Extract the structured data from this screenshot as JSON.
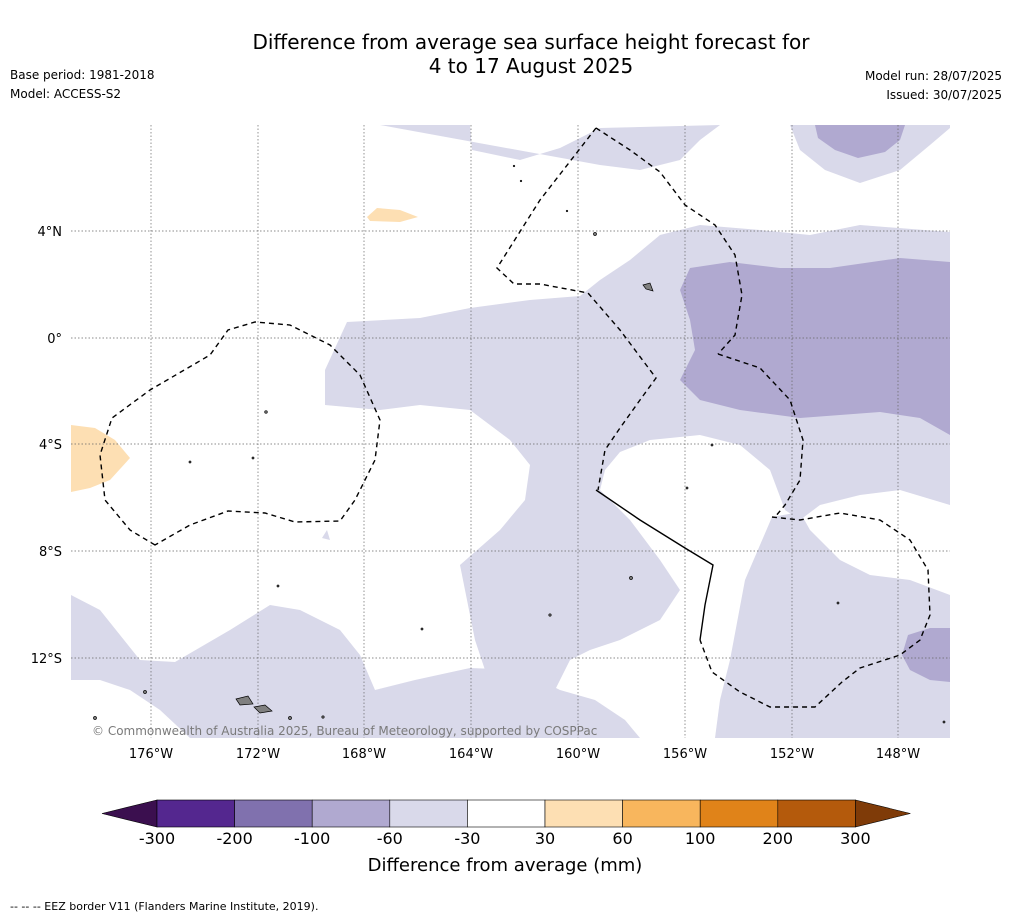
{
  "title_line1": "Difference from average sea surface height forecast for",
  "title_line2": "4 to 17 August 2025",
  "base_period": "Base period: 1981-2018",
  "model": "Model: ACCESS-S2",
  "model_run": "Model run: 28/07/2025",
  "issued": "Issued: 30/07/2025",
  "copyright": "© Commonwealth of Australia 2025, Bureau of Meteorology, supported by COSPPac",
  "lon_labels": [
    "176°W",
    "172°W",
    "168°W",
    "164°W",
    "160°W",
    "156°W",
    "152°W",
    "148°W"
  ],
  "lat_labels": [
    "4°N",
    "0°",
    "4°S",
    "8°S",
    "12°S"
  ],
  "colorbar": {
    "label": "Difference from average (mm)",
    "ticks": [
      "-300",
      "-200",
      "-100",
      "-60",
      "-30",
      "30",
      "60",
      "100",
      "200",
      "300"
    ],
    "colors": [
      "#3b0f4f",
      "#54278f",
      "#8071ae",
      "#b0a9d0",
      "#d9d9ea",
      "#ffffff",
      "#fddfb3",
      "#f8b65d",
      "#e08319",
      "#b45a0c",
      "#7f3b08"
    ]
  },
  "footnote": "--  --  -- EEZ border V11 (Flanders Marine Institute, 2019)."
}
